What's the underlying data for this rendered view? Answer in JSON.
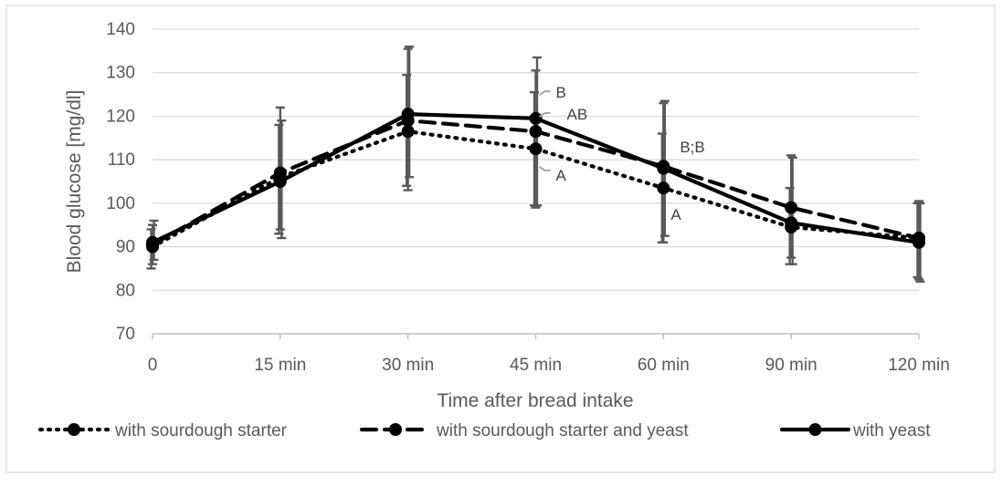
{
  "chart_data": {
    "type": "line",
    "title": "",
    "xlabel": "Time after bread intake",
    "ylabel": "Blood glucose [mg/dl]",
    "categories": [
      "0",
      "15 min",
      "30 min",
      "45 min",
      "60 min",
      "90 min",
      "120 min"
    ],
    "ylim": [
      70,
      140
    ],
    "yticks": [
      70,
      80,
      90,
      100,
      110,
      120,
      130,
      140
    ],
    "grid": true,
    "legend_position": "bottom",
    "series": [
      {
        "name": "with sourdough starter",
        "style": "dotted",
        "color": "#000000",
        "values": [
          90,
          106,
          116.5,
          112.5,
          103.5,
          94.5,
          92
        ],
        "error": [
          [
            85,
            94
          ],
          [
            93,
            118
          ],
          [
            104,
            129.5
          ],
          [
            99.5,
            125.5
          ],
          [
            91,
            116
          ],
          [
            86,
            103.5
          ],
          [
            83,
            100
          ]
        ]
      },
      {
        "name": "with sourdough starter and yeast",
        "style": "dashed",
        "color": "#000000",
        "values": [
          90.5,
          107,
          119,
          116.5,
          108.5,
          99,
          92
        ],
        "error": [
          [
            86,
            95
          ],
          [
            94,
            122
          ],
          [
            103,
            135.5
          ],
          [
            99,
            130.5
          ],
          [
            91,
            123
          ],
          [
            87.5,
            111
          ],
          [
            82.5,
            100.5
          ]
        ]
      },
      {
        "name": "with yeast",
        "style": "solid",
        "color": "#000000",
        "values": [
          91,
          105,
          120.5,
          119.5,
          108,
          95.5,
          91
        ],
        "error": [
          [
            87,
            96
          ],
          [
            92,
            119
          ],
          [
            106,
            136
          ],
          [
            99.5,
            133.5
          ],
          [
            92.5,
            123.5
          ],
          [
            86,
            110.5
          ],
          [
            82,
            100
          ]
        ]
      }
    ],
    "annotations": [
      {
        "text": "B",
        "category": "45 min",
        "y": 125.5
      },
      {
        "text": "AB",
        "category": "45 min",
        "y": 120.5
      },
      {
        "text": "A",
        "category": "45 min",
        "y": 106.5
      },
      {
        "text": "B;B",
        "category": "60 min",
        "y": 113
      },
      {
        "text": "A",
        "category": "60 min",
        "y": 97.5
      }
    ]
  }
}
